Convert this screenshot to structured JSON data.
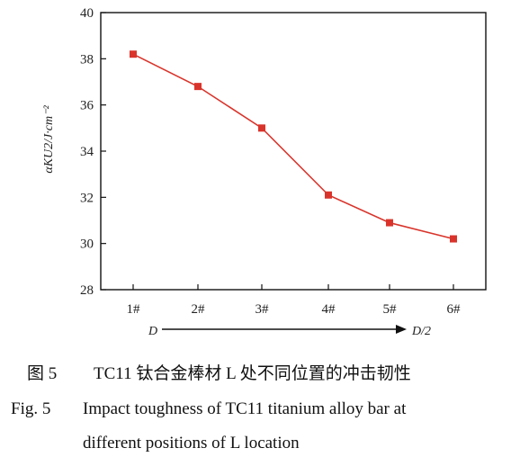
{
  "chart_data": {
    "type": "line",
    "categories": [
      "1#",
      "2#",
      "3#",
      "4#",
      "5#",
      "6#"
    ],
    "series": [
      {
        "values": [
          38.2,
          36.8,
          35.0,
          32.1,
          30.9,
          30.2
        ]
      }
    ],
    "ylabel": "αKU2/J·cm⁻²",
    "xlabel": "",
    "ylim": [
      28,
      40
    ],
    "yticks": [
      "28",
      "30",
      "32",
      "34",
      "36",
      "38",
      "40"
    ],
    "direction_start": "D",
    "direction_end": "D/2",
    "line_color": "#d9342b",
    "marker_color": "#d9342b",
    "marker": "square",
    "grid": false
  },
  "caption": {
    "cn_number": "图 5",
    "cn_text": "TC11 钛合金棒材 L 处不同位置的冲击韧性",
    "en_number": "Fig. 5",
    "en_line1": "Impact toughness of TC11 titanium alloy bar at",
    "en_line2": "different positions of L location"
  }
}
